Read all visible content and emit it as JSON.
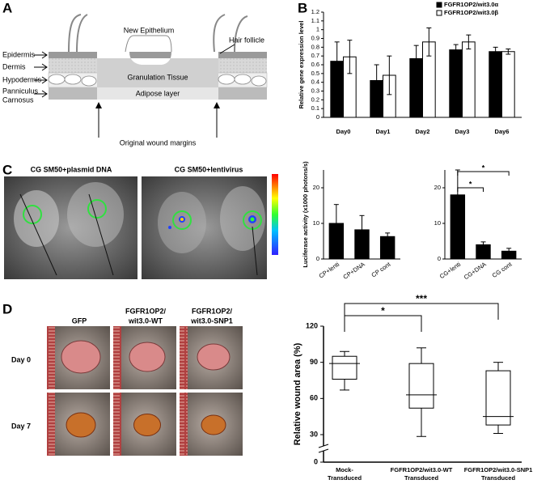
{
  "panel_labels": [
    "A",
    "B",
    "C",
    "D"
  ],
  "diagram": {
    "left_labels": [
      "Epidermis",
      "Dermis",
      "Hypodermis",
      "Panniculus",
      "Carnosus"
    ],
    "new_epithelium": "New Epithelium",
    "hair_follicle": "Hair follicle",
    "granulation_tissue": "Granulation Tissue",
    "adipose_layer": "Adipose layer",
    "wound_margins": "Original wound margins"
  },
  "luciferase_images": {
    "titles": [
      "CG SM50+plasmid DNA",
      "CG SM50+lentivirus"
    ]
  },
  "wound_photos": {
    "columns": [
      [
        "GFP"
      ],
      [
        "FGFR1OP2/",
        "wit3.0-WT"
      ],
      [
        "FGFR1OP2/",
        "wit3.0-SNP1"
      ]
    ],
    "rows": [
      "Day 0",
      "Day 7"
    ]
  },
  "chart_data": [
    {
      "type": "bar",
      "ylabel": "Relative gene expression level",
      "categories": [
        "Day0",
        "Day1",
        "Day2",
        "Day3",
        "Day6"
      ],
      "series": [
        {
          "name": "FGFR1OP2/wit3.0α",
          "color": "#000000",
          "values": [
            0.64,
            0.42,
            0.67,
            0.77,
            0.75
          ],
          "errors": [
            0.22,
            0.18,
            0.15,
            0.06,
            0.05
          ]
        },
        {
          "name": "FGFR1OP2/wit3.0β",
          "color": "#ffffff",
          "values": [
            0.69,
            0.48,
            0.86,
            0.86,
            0.75
          ],
          "errors": [
            0.19,
            0.22,
            0.16,
            0.08,
            0.03
          ]
        }
      ],
      "error_direction": "both",
      "ylim": [
        0,
        1.2
      ],
      "yticks": [
        0,
        0.1,
        0.2,
        0.3,
        0.4,
        0.5,
        0.6,
        0.7,
        0.8,
        0.9,
        1,
        1.1,
        1.2
      ],
      "legend": "top-right"
    },
    {
      "type": "bar",
      "ylabel": "Luciferase activity (x1000 photons/s)",
      "categories": [
        "CP+lenti",
        "CP+DNA",
        "CP cont"
      ],
      "series": [
        {
          "color": "#000000",
          "values": [
            10,
            8.2,
            6.3
          ],
          "errors": [
            5.3,
            4,
            1
          ]
        }
      ],
      "error_direction": "up",
      "ylim": [
        0,
        25
      ],
      "yticks": [
        0,
        10,
        20
      ]
    },
    {
      "type": "bar",
      "categories": [
        "CG+lenti",
        "CG+DNA",
        "CG cont"
      ],
      "series": [
        {
          "color": "#000000",
          "values": [
            18,
            4,
            2.2
          ],
          "errors": [
            7,
            0.8,
            0.8
          ]
        }
      ],
      "error_direction": "up",
      "ylim": [
        0,
        25
      ],
      "yticks": [
        0,
        10,
        20
      ],
      "annotations": [
        "*",
        "*"
      ]
    },
    {
      "type": "box",
      "ylabel": "Relative wound area (%)",
      "categories": [
        [
          "Mock-",
          "Transduced"
        ],
        [
          "FGFR1OP2/wit3.0-WT",
          "Transduced"
        ],
        [
          "FGFR1OP2/wit3.0-SNP1",
          "Transduced"
        ]
      ],
      "boxes": [
        {
          "whisker_low": 67,
          "q1": 76,
          "median": 89,
          "q3": 95,
          "whisker_high": 99
        },
        {
          "whisker_low": 28,
          "q1": 52,
          "median": 63,
          "q3": 89,
          "whisker_high": 102
        },
        {
          "whisker_low": 31,
          "q1": 38,
          "median": 45,
          "q3": 83,
          "whisker_high": 90
        }
      ],
      "ylim": [
        0,
        120
      ],
      "yticks": [
        0,
        30,
        60,
        90,
        120
      ],
      "axis_break": true,
      "annotations": [
        "*",
        "***"
      ]
    }
  ]
}
